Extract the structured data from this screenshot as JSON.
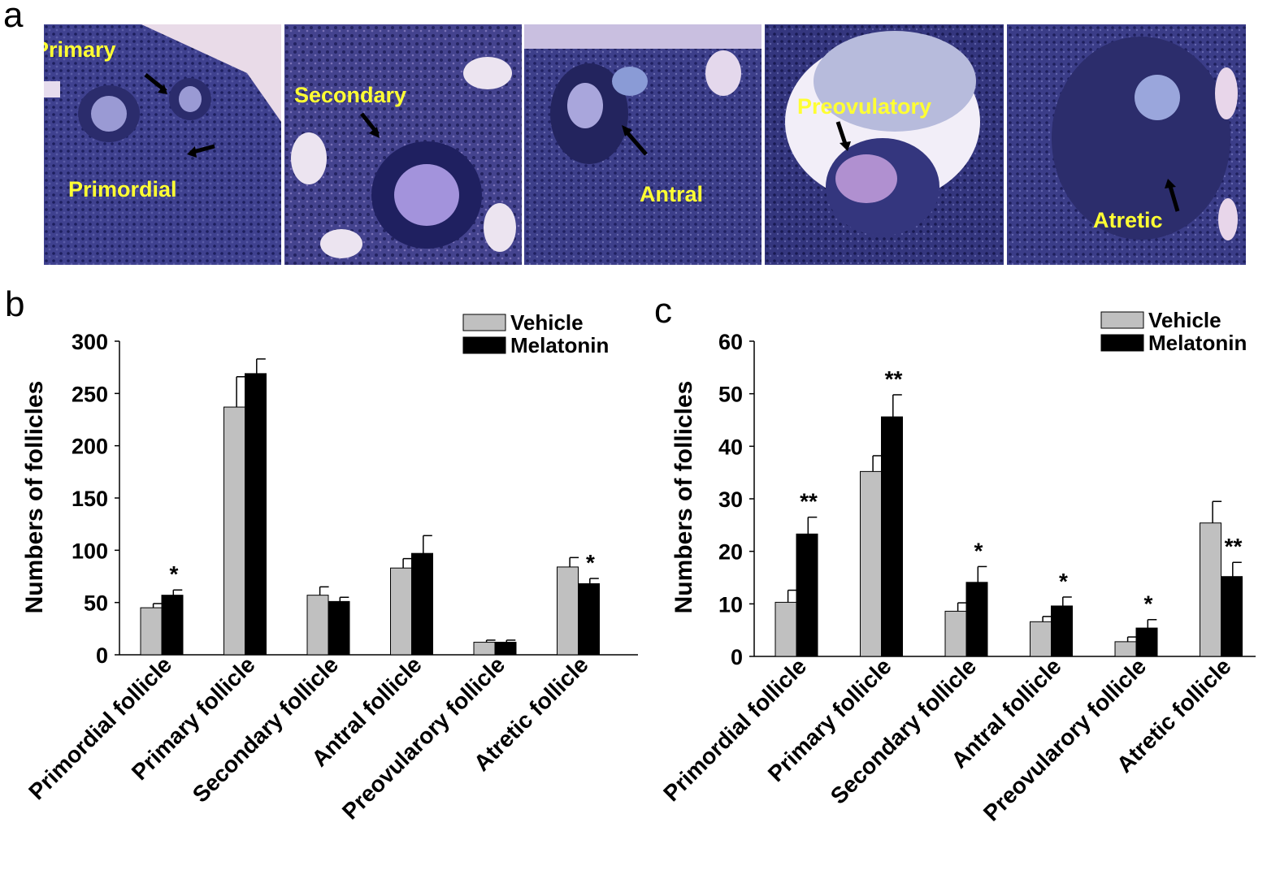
{
  "panels": {
    "a": "a",
    "b": "b",
    "c": "c"
  },
  "micrographs": [
    {
      "labels": [
        "Primary",
        "Primordial"
      ]
    },
    {
      "labels": [
        "Secondary"
      ]
    },
    {
      "labels": [
        "Antral"
      ]
    },
    {
      "labels": [
        "Preovulatory"
      ]
    },
    {
      "labels": [
        "Atretic"
      ]
    }
  ],
  "colors": {
    "vehicle": "#c0c0c0",
    "melatonin": "#000000",
    "label_yellow": "#ffff33",
    "stain": "#3e3f8c"
  },
  "chart_data": [
    {
      "type": "bar",
      "panel": "b",
      "title": "",
      "ylabel": "Numbers of follicles",
      "xlabel": "",
      "ylim": [
        0,
        300
      ],
      "yticks": [
        0,
        50,
        100,
        150,
        200,
        250,
        300
      ],
      "categories": [
        "Primordial follicle",
        "Primary follicle",
        "Secondary follicle",
        "Antral follicle",
        "Preovularory follicle",
        "Atretic follicle"
      ],
      "series": [
        {
          "name": "Vehicle",
          "values": [
            45,
            237,
            57,
            83,
            12,
            84
          ],
          "errors": [
            4,
            29,
            8,
            9,
            2,
            9
          ]
        },
        {
          "name": "Melatonin",
          "values": [
            57,
            269,
            51,
            97,
            12,
            68
          ],
          "errors": [
            5,
            14,
            4,
            17,
            2,
            5
          ]
        }
      ],
      "annotations": [
        "",
        "",
        "",
        "",
        "",
        ""
      ],
      "melatonin_annotations": [
        "*",
        "",
        "",
        "",
        "",
        "*"
      ],
      "legend": "top-right"
    },
    {
      "type": "bar",
      "panel": "c",
      "title": "",
      "ylabel": "Numbers of follicles",
      "xlabel": "",
      "ylim": [
        0,
        60
      ],
      "yticks": [
        0,
        10,
        20,
        30,
        40,
        50,
        60
      ],
      "categories": [
        "Primordial follicle",
        "Primary follicle",
        "Secondary follicle",
        "Antral follicle",
        "Preovularory follicle",
        "Atretic follicle"
      ],
      "series": [
        {
          "name": "Vehicle",
          "values": [
            10.3,
            35.2,
            8.6,
            6.6,
            2.8,
            25.4
          ],
          "errors": [
            2.3,
            3.0,
            1.6,
            1.0,
            0.9,
            4.1
          ]
        },
        {
          "name": "Melatonin",
          "values": [
            23.3,
            45.6,
            14.1,
            9.6,
            5.4,
            15.2
          ],
          "errors": [
            3.2,
            4.2,
            3.0,
            1.7,
            1.6,
            2.7
          ]
        }
      ],
      "melatonin_annotations": [
        "**",
        "**",
        "*",
        "*",
        "*",
        "**"
      ],
      "legend": "top-right"
    }
  ]
}
